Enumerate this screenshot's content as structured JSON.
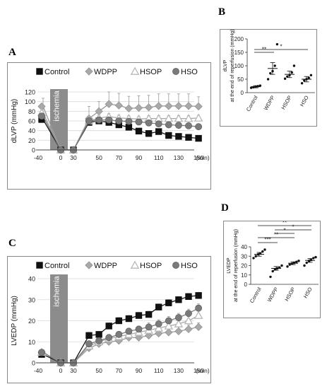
{
  "panels": {
    "A": {
      "letter": "A"
    },
    "B": {
      "letter": "B"
    },
    "C": {
      "letter": "C"
    },
    "D": {
      "letter": "D"
    }
  },
  "colors": {
    "control": "#111111",
    "wdpp": "#a9a9a9",
    "hsop": "#b8b8b8",
    "hso": "#7a7a7a",
    "ischemia_bar": "#8c8c8c"
  },
  "chart_data": [
    {
      "id": "A",
      "type": "line",
      "xlabel": "(min)",
      "ylabel": "dLVP (mmHg)",
      "annotation": "ischemia",
      "ylim": [
        0,
        120
      ],
      "yticks": [
        "0",
        "20",
        "40",
        "60",
        "80",
        "100",
        "120"
      ],
      "xticks": [
        "-40",
        "0",
        "30",
        "50",
        "70",
        "90",
        "110",
        "130",
        "150"
      ],
      "grid": true,
      "legend": "top",
      "x": [
        -40,
        -35,
        0,
        30,
        40,
        50,
        60,
        70,
        80,
        90,
        100,
        110,
        120,
        130,
        140,
        150
      ],
      "series": [
        {
          "name": "Control",
          "marker": "square",
          "values": [
            63,
            63,
            0,
            0,
            57,
            60,
            57,
            52,
            47,
            39,
            34,
            38,
            30,
            28,
            26,
            24
          ],
          "errors": [
            0,
            0,
            0,
            0,
            5,
            6,
            6,
            7,
            6,
            6,
            5,
            4,
            4,
            3,
            3,
            3
          ]
        },
        {
          "name": "WDPP",
          "marker": "diamond",
          "values": [
            90,
            90,
            0,
            0,
            65,
            80,
            95,
            92,
            86,
            87,
            88,
            91,
            91,
            91,
            91,
            90
          ],
          "errors": [
            0,
            17,
            0,
            0,
            25,
            20,
            25,
            25,
            25,
            25,
            25,
            25,
            25,
            25,
            25,
            20
          ]
        },
        {
          "name": "HSOP",
          "marker": "triangle",
          "values": [
            77,
            77,
            0,
            0,
            60,
            66,
            69,
            66,
            65,
            64,
            65,
            65,
            65,
            65,
            65,
            66
          ],
          "errors": [
            0,
            8,
            0,
            0,
            8,
            6,
            6,
            6,
            6,
            6,
            6,
            6,
            6,
            6,
            6,
            6
          ]
        },
        {
          "name": "HSO",
          "marker": "circle",
          "values": [
            70,
            70,
            0,
            0,
            60,
            62,
            62,
            60,
            59,
            58,
            56,
            54,
            52,
            51,
            50,
            48
          ],
          "errors": [
            0,
            6,
            0,
            0,
            5,
            5,
            5,
            5,
            5,
            5,
            5,
            5,
            5,
            5,
            5,
            5
          ]
        }
      ]
    },
    {
      "id": "B",
      "type": "scatter",
      "ylabel": "dLVP\nat the end of reperfusion (mmHg)",
      "ylim": [
        0,
        200
      ],
      "yticks": [
        "0",
        "50",
        "100",
        "150",
        "200"
      ],
      "categories": [
        "Control",
        "WDPP",
        "HSOP",
        "HSO"
      ],
      "means": [
        22,
        90,
        68,
        50
      ],
      "errors": [
        4,
        22,
        12,
        10
      ],
      "points": [
        [
          18,
          20,
          22,
          24,
          26
        ],
        [
          50,
          72,
          80,
          100,
          180
        ],
        [
          52,
          60,
          65,
          75,
          100
        ],
        [
          35,
          45,
          50,
          55,
          65
        ]
      ],
      "significance": [
        {
          "from": 0,
          "to": 1,
          "label": "**"
        },
        {
          "from": 0,
          "to": 3,
          "label": "*"
        }
      ]
    },
    {
      "id": "C",
      "type": "line",
      "xlabel": "(min)",
      "ylabel": "LVEDP (mmHg)",
      "annotation": "ischemia",
      "ylim": [
        0,
        40
      ],
      "yticks": [
        "0",
        "10",
        "20",
        "30",
        "40"
      ],
      "xticks": [
        "-40",
        "0",
        "30",
        "50",
        "70",
        "90",
        "110",
        "130",
        "150"
      ],
      "grid": true,
      "legend": "top",
      "x": [
        -40,
        -35,
        0,
        30,
        40,
        50,
        60,
        70,
        80,
        90,
        100,
        110,
        120,
        130,
        140,
        150
      ],
      "series": [
        {
          "name": "Control",
          "marker": "square",
          "values": [
            4,
            4,
            0,
            0,
            13,
            13.5,
            17.5,
            20,
            21,
            22.5,
            23,
            26.5,
            28.5,
            30,
            31.5,
            32
          ],
          "errors": [
            0,
            1,
            0,
            0,
            1.5,
            1.5,
            1.5,
            1.5,
            1.5,
            1.5,
            1.5,
            1.5,
            1.5,
            1.5,
            1.5,
            1.5
          ]
        },
        {
          "name": "WDPP",
          "marker": "diamond",
          "values": [
            5,
            5,
            0,
            0,
            7,
            9,
            10,
            10.5,
            12,
            12,
            13,
            14,
            14.5,
            15,
            16,
            17
          ],
          "errors": [
            0,
            1,
            0,
            0,
            1.5,
            1.5,
            1.5,
            2,
            2,
            2,
            2,
            2,
            2,
            2,
            2,
            2
          ]
        },
        {
          "name": "HSOP",
          "marker": "triangle",
          "values": [
            5,
            5,
            0,
            0,
            8,
            10,
            11.5,
            12.5,
            13.5,
            14.5,
            15.5,
            16.5,
            17.5,
            18.5,
            20,
            22.5
          ],
          "errors": [
            0,
            1,
            0,
            0,
            1.5,
            1.5,
            1.5,
            1.5,
            1.5,
            2,
            2,
            2,
            2,
            2,
            2,
            2
          ]
        },
        {
          "name": "HSO",
          "marker": "circle",
          "values": [
            5,
            5,
            0,
            0,
            9,
            10.5,
            12,
            13.5,
            15,
            16,
            17,
            18.5,
            20,
            21.5,
            23.5,
            26
          ],
          "errors": [
            0,
            1,
            0,
            0,
            1.5,
            1.5,
            1.5,
            1.5,
            1.5,
            1.5,
            2,
            2,
            2,
            2,
            2,
            2
          ]
        }
      ]
    },
    {
      "id": "D",
      "type": "scatter",
      "ylabel": "LVEDP\nat the end of reperfusion (mmHg)",
      "ylim": [
        0,
        40
      ],
      "yticks": [
        "0",
        "10",
        "20",
        "30",
        "40"
      ],
      "categories": [
        "Control",
        "WDPP",
        "HSOP",
        "HSO"
      ],
      "means": [
        32,
        17,
        22.5,
        25.5
      ],
      "errors": [
        2,
        2,
        1.5,
        2
      ],
      "points": [
        [
          28,
          30,
          32,
          33,
          35,
          37
        ],
        [
          8,
          14,
          16,
          17,
          18,
          20
        ],
        [
          19,
          21,
          22,
          23,
          24,
          25
        ],
        [
          20,
          23,
          25,
          26,
          28,
          29
        ]
      ],
      "significance": [
        {
          "from": 0,
          "to": 1,
          "label": "***"
        },
        {
          "from": 0,
          "to": 2,
          "label": "**"
        },
        {
          "from": 1,
          "to": 2,
          "label": "*"
        },
        {
          "from": 1,
          "to": 3,
          "label": "*"
        },
        {
          "from": 0,
          "to": 3,
          "label": "**"
        }
      ]
    }
  ]
}
